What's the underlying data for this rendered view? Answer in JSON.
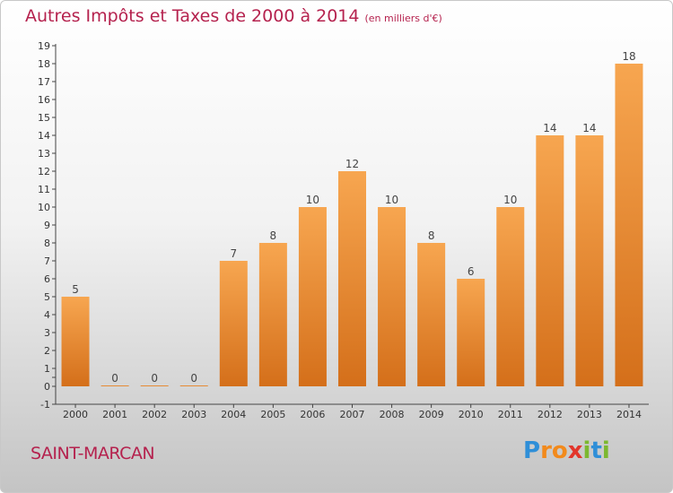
{
  "title": "Autres Impôts et Taxes de 2000 à 2014",
  "subtitle": "(en milliers d'€)",
  "town": "SAINT-MARCAN",
  "logo": {
    "letters": [
      "P",
      "r",
      "o",
      "x",
      "i",
      "t",
      "i"
    ],
    "colors": [
      "#2f8fd8",
      "#f28a1c",
      "#f28a1c",
      "#e2352b",
      "#7cb82f",
      "#2f8fd8",
      "#7cb82f"
    ]
  },
  "colors": {
    "bar_top": "#f7a650",
    "bar_bottom": "#d46f1a",
    "text": "#b5224e"
  },
  "chart_data": {
    "type": "bar",
    "categories": [
      "2000",
      "2001",
      "2002",
      "2003",
      "2004",
      "2005",
      "2006",
      "2007",
      "2008",
      "2009",
      "2010",
      "2011",
      "2012",
      "2013",
      "2014"
    ],
    "values": [
      5,
      0,
      0,
      0,
      7,
      8,
      10,
      12,
      10,
      8,
      6,
      10,
      14,
      14,
      18
    ],
    "data_labels": [
      "5",
      "0",
      "0",
      "0",
      "7",
      "8",
      "10",
      "12",
      "10",
      "8",
      "6",
      "10",
      "14",
      "14",
      "18"
    ],
    "ylim": [
      -1,
      19
    ],
    "yticks": [
      "-1",
      "",
      "0",
      "1",
      "2",
      "3",
      "4",
      "5",
      "6",
      "7",
      "8",
      "9",
      "10",
      "11",
      "12",
      "13",
      "14",
      "15",
      "16",
      "17",
      "18",
      "19"
    ],
    "ytick_values": [
      -1,
      0.5,
      0,
      1,
      2,
      3,
      4,
      5,
      6,
      7,
      8,
      9,
      10,
      11,
      12,
      13,
      14,
      15,
      16,
      17,
      18,
      19
    ],
    "grid": false,
    "title": "Autres Impôts et Taxes de 2000 à 2014",
    "xlabel": "",
    "ylabel": ""
  }
}
